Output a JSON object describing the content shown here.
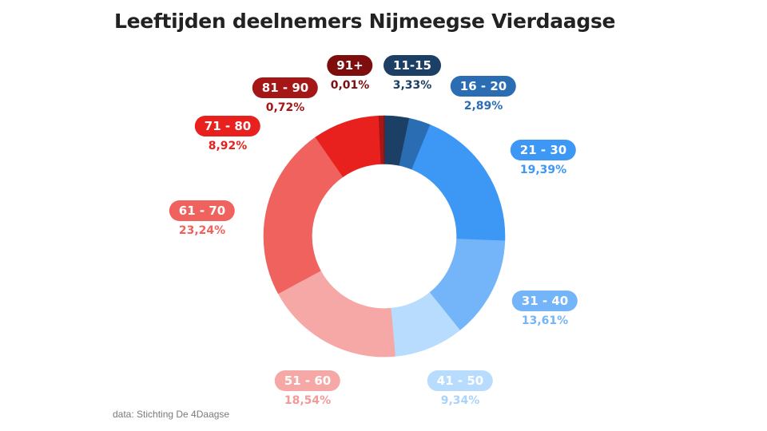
{
  "chart_data": {
    "type": "pie",
    "title": "Leeftijden deelnemers Nijmeegse Vierdaagse",
    "categories": [
      "11-15",
      "16 - 20",
      "21 - 30",
      "31 - 40",
      "41 - 50",
      "51 - 60",
      "61 - 70",
      "71 - 80",
      "81 - 90",
      "91+"
    ],
    "values": [
      3.33,
      2.89,
      19.39,
      13.61,
      9.34,
      18.54,
      23.24,
      8.92,
      0.72,
      0.01
    ],
    "value_labels": [
      "3,33%",
      "2,89%",
      "19,39%",
      "13,61%",
      "9,34%",
      "18,54%",
      "23,24%",
      "8,92%",
      "0,72%",
      "0,01%"
    ],
    "colors": [
      "#1c3f66",
      "#2b6db3",
      "#3d97f5",
      "#74b5f9",
      "#b7dcfd",
      "#f5a8a6",
      "#f0625e",
      "#e8201e",
      "#a51616",
      "#7e0d0d"
    ],
    "label_colors": [
      "#1c3f66",
      "#2b6db3",
      "#3d97f5",
      "#74b5f9",
      "#a9d3fb",
      "#f09b98",
      "#f0625e",
      "#e8201e",
      "#a51616",
      "#7e0d0d"
    ],
    "hole": 0.6,
    "legend": "none"
  },
  "source": "data: Stichting De 4Daagse"
}
